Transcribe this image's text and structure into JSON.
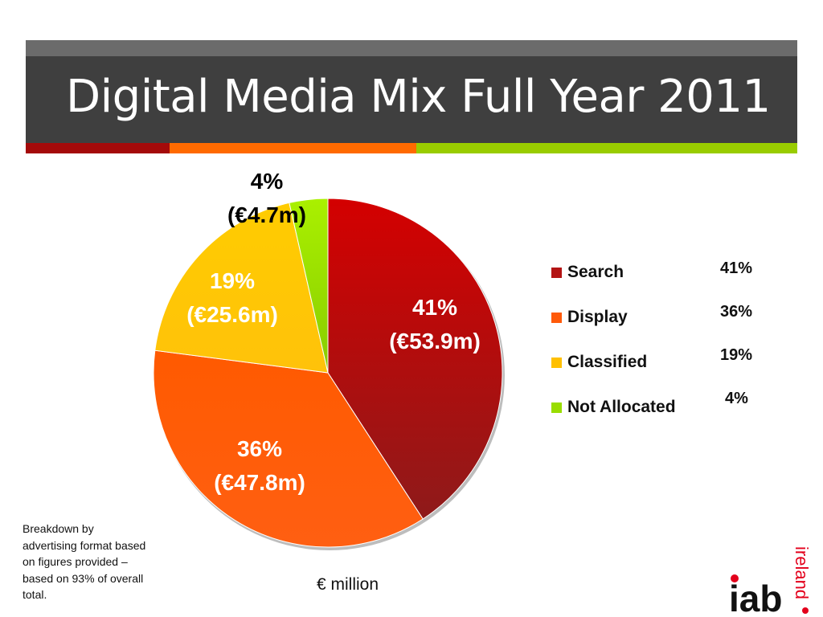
{
  "slide": {
    "title": "Digital Media Mix Full Year 2011",
    "note": "Breakdown by advertising format based on figures provided – based on 93% of overall total.",
    "units": "€ million",
    "logo": {
      "text": "iab",
      "subtext": "ireland"
    }
  },
  "colors": {
    "header": "#3f3f3f",
    "stripe_red": "#a40a0a",
    "stripe_orange": "#ff6a00",
    "stripe_green": "#99cc00"
  },
  "chart_data": {
    "type": "pie",
    "categories": [
      "Search",
      "Display",
      "Classified",
      "Not Allocated"
    ],
    "values": [
      53.9,
      47.8,
      25.6,
      4.7
    ],
    "percentages": [
      41,
      36,
      19,
      4
    ],
    "slice_labels": [
      {
        "pct": "41%",
        "value": "(€53.9m)"
      },
      {
        "pct": "36%",
        "value": "(€47.8m)"
      },
      {
        "pct": "19%",
        "value": "(€25.6m)"
      },
      {
        "pct": "4%",
        "value": "(€4.7m)"
      }
    ],
    "legend_percent_labels": [
      "41%",
      "36%",
      "19%",
      "4%"
    ],
    "colors": [
      "#b31414",
      "#ff5a0a",
      "#ffc000",
      "#99dd00"
    ],
    "legend_position": "right"
  }
}
